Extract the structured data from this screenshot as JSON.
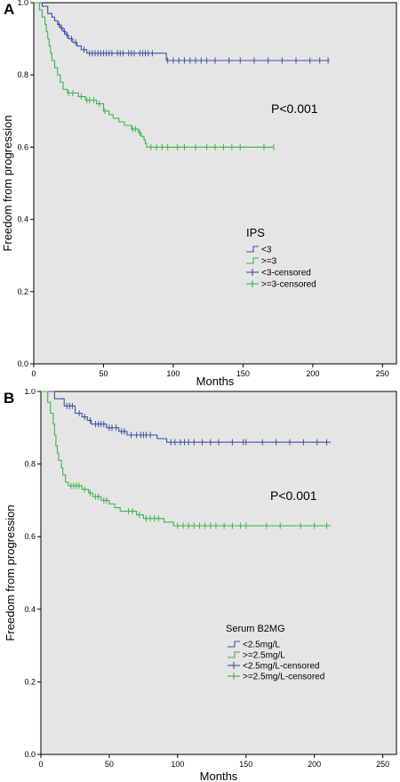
{
  "colors": {
    "blue": "#3a53a4",
    "green": "#3cb54a",
    "plot_bg": "#e5e5e5"
  },
  "chart_data": [
    {
      "type": "line",
      "panel_label": "A",
      "xlabel": "Months",
      "ylabel": "Freedom from progression",
      "xlim": [
        0,
        260
      ],
      "ylim": [
        0,
        1.0
      ],
      "xticks": [
        "0",
        "50",
        "100",
        "150",
        "200",
        "250"
      ],
      "yticks": [
        "0.0",
        "0.2",
        "0.4",
        "0.6",
        "0.8",
        "1.0"
      ],
      "p_value": "P<0.001",
      "legend_title": "IPS",
      "legend_items": [
        "<3",
        ">=3",
        "<3-censored",
        ">=3-censored"
      ],
      "series": [
        {
          "name": "<3",
          "color": "#3a53a4",
          "steps": [
            [
              0,
              1.0
            ],
            [
              6,
              0.99
            ],
            [
              10,
              0.97
            ],
            [
              13,
              0.96
            ],
            [
              15,
              0.95
            ],
            [
              17,
              0.94
            ],
            [
              19,
              0.93
            ],
            [
              21,
              0.92
            ],
            [
              23,
              0.91
            ],
            [
              25,
              0.9
            ],
            [
              28,
              0.89
            ],
            [
              31,
              0.88
            ],
            [
              34,
              0.87
            ],
            [
              38,
              0.86
            ],
            [
              95,
              0.84
            ],
            [
              212,
              0.84
            ]
          ],
          "censored": [
            [
              18,
              0.94
            ],
            [
              20,
              0.93
            ],
            [
              22,
              0.92
            ],
            [
              24,
              0.91
            ],
            [
              27,
              0.9
            ],
            [
              30,
              0.89
            ],
            [
              36,
              0.87
            ],
            [
              40,
              0.86
            ],
            [
              42,
              0.86
            ],
            [
              44,
              0.86
            ],
            [
              46,
              0.86
            ],
            [
              48,
              0.86
            ],
            [
              50,
              0.86
            ],
            [
              52,
              0.86
            ],
            [
              54,
              0.86
            ],
            [
              56,
              0.86
            ],
            [
              60,
              0.86
            ],
            [
              62,
              0.86
            ],
            [
              64,
              0.86
            ],
            [
              68,
              0.86
            ],
            [
              70,
              0.86
            ],
            [
              72,
              0.86
            ],
            [
              76,
              0.86
            ],
            [
              78,
              0.86
            ],
            [
              80,
              0.86
            ],
            [
              82,
              0.86
            ],
            [
              85,
              0.86
            ],
            [
              96,
              0.84
            ],
            [
              100,
              0.84
            ],
            [
              104,
              0.84
            ],
            [
              108,
              0.84
            ],
            [
              112,
              0.84
            ],
            [
              116,
              0.84
            ],
            [
              120,
              0.84
            ],
            [
              124,
              0.84
            ],
            [
              130,
              0.84
            ],
            [
              140,
              0.84
            ],
            [
              148,
              0.84
            ],
            [
              158,
              0.84
            ],
            [
              168,
              0.84
            ],
            [
              178,
              0.84
            ],
            [
              188,
              0.84
            ],
            [
              198,
              0.84
            ],
            [
              205,
              0.84
            ],
            [
              211,
              0.84
            ]
          ]
        },
        {
          "name": ">=3",
          "color": "#3cb54a",
          "steps": [
            [
              0,
              1.0
            ],
            [
              4,
              0.98
            ],
            [
              6,
              0.96
            ],
            [
              8,
              0.94
            ],
            [
              9,
              0.92
            ],
            [
              10,
              0.9
            ],
            [
              11,
              0.88
            ],
            [
              12,
              0.86
            ],
            [
              13,
              0.84
            ],
            [
              15,
              0.82
            ],
            [
              17,
              0.8
            ],
            [
              19,
              0.78
            ],
            [
              21,
              0.76
            ],
            [
              24,
              0.75
            ],
            [
              32,
              0.74
            ],
            [
              37,
              0.73
            ],
            [
              45,
              0.72
            ],
            [
              50,
              0.7
            ],
            [
              54,
              0.69
            ],
            [
              57,
              0.68
            ],
            [
              61,
              0.67
            ],
            [
              65,
              0.66
            ],
            [
              70,
              0.65
            ],
            [
              75,
              0.64
            ],
            [
              77,
              0.63
            ],
            [
              79,
              0.62
            ],
            [
              80,
              0.61
            ],
            [
              81,
              0.6
            ],
            [
              172,
              0.6
            ]
          ],
          "censored": [
            [
              25,
              0.75
            ],
            [
              28,
              0.75
            ],
            [
              34,
              0.74
            ],
            [
              38,
              0.73
            ],
            [
              40,
              0.73
            ],
            [
              43,
              0.73
            ],
            [
              47,
              0.72
            ],
            [
              51,
              0.7
            ],
            [
              71,
              0.65
            ],
            [
              73,
              0.65
            ],
            [
              76,
              0.64
            ],
            [
              84,
              0.6
            ],
            [
              88,
              0.6
            ],
            [
              92,
              0.6
            ],
            [
              96,
              0.6
            ],
            [
              103,
              0.6
            ],
            [
              108,
              0.6
            ],
            [
              116,
              0.6
            ],
            [
              124,
              0.6
            ],
            [
              130,
              0.6
            ],
            [
              136,
              0.6
            ],
            [
              142,
              0.6
            ],
            [
              148,
              0.6
            ],
            [
              165,
              0.6
            ],
            [
              172,
              0.6
            ]
          ]
        }
      ]
    },
    {
      "type": "line",
      "panel_label": "B",
      "xlabel": "Months",
      "ylabel": "Freedom from progression",
      "xlim": [
        0,
        260
      ],
      "ylim": [
        0,
        1.0
      ],
      "xticks": [
        "0",
        "50",
        "100",
        "150",
        "200",
        "250"
      ],
      "yticks": [
        "0.0",
        "0.2",
        "0.4",
        "0.6",
        "0.8",
        "1.0"
      ],
      "p_value": "P<0.001",
      "legend_title": "Serum B2MG",
      "legend_items": [
        "<2.5mg/L",
        ">=2.5mg/L",
        "<2.5mg/L-censored",
        ">=2.5mg/L-censored"
      ],
      "series": [
        {
          "name": "<2.5mg/L",
          "color": "#3a53a4",
          "steps": [
            [
              0,
              1.0
            ],
            [
              10,
              0.98
            ],
            [
              17,
              0.96
            ],
            [
              25,
              0.94
            ],
            [
              30,
              0.93
            ],
            [
              34,
              0.92
            ],
            [
              37,
              0.91
            ],
            [
              48,
              0.9
            ],
            [
              57,
              0.89
            ],
            [
              63,
              0.88
            ],
            [
              85,
              0.87
            ],
            [
              92,
              0.86
            ],
            [
              212,
              0.86
            ]
          ],
          "censored": [
            [
              19,
              0.96
            ],
            [
              21,
              0.96
            ],
            [
              23,
              0.96
            ],
            [
              28,
              0.94
            ],
            [
              32,
              0.93
            ],
            [
              36,
              0.92
            ],
            [
              40,
              0.91
            ],
            [
              42,
              0.91
            ],
            [
              44,
              0.91
            ],
            [
              46,
              0.91
            ],
            [
              50,
              0.9
            ],
            [
              52,
              0.9
            ],
            [
              55,
              0.9
            ],
            [
              59,
              0.89
            ],
            [
              61,
              0.89
            ],
            [
              66,
              0.88
            ],
            [
              70,
              0.88
            ],
            [
              73,
              0.88
            ],
            [
              75,
              0.88
            ],
            [
              77,
              0.88
            ],
            [
              80,
              0.88
            ],
            [
              95,
              0.86
            ],
            [
              98,
              0.86
            ],
            [
              102,
              0.86
            ],
            [
              105,
              0.86
            ],
            [
              108,
              0.86
            ],
            [
              112,
              0.86
            ],
            [
              118,
              0.86
            ],
            [
              124,
              0.86
            ],
            [
              130,
              0.86
            ],
            [
              140,
              0.86
            ],
            [
              148,
              0.86
            ],
            [
              150,
              0.86
            ],
            [
              162,
              0.86
            ],
            [
              172,
              0.86
            ],
            [
              182,
              0.86
            ],
            [
              192,
              0.86
            ],
            [
              202,
              0.86
            ],
            [
              209,
              0.86
            ]
          ]
        },
        {
          "name": ">=2.5mg/L",
          "color": "#3cb54a",
          "steps": [
            [
              0,
              1.0
            ],
            [
              5,
              0.97
            ],
            [
              7,
              0.94
            ],
            [
              9,
              0.91
            ],
            [
              10,
              0.88
            ],
            [
              11,
              0.85
            ],
            [
              12,
              0.83
            ],
            [
              13,
              0.81
            ],
            [
              15,
              0.79
            ],
            [
              16,
              0.77
            ],
            [
              18,
              0.75
            ],
            [
              20,
              0.74
            ],
            [
              30,
              0.73
            ],
            [
              35,
              0.72
            ],
            [
              38,
              0.71
            ],
            [
              44,
              0.7
            ],
            [
              50,
              0.69
            ],
            [
              54,
              0.68
            ],
            [
              58,
              0.67
            ],
            [
              70,
              0.66
            ],
            [
              75,
              0.65
            ],
            [
              90,
              0.64
            ],
            [
              97,
              0.63
            ],
            [
              212,
              0.63
            ]
          ],
          "censored": [
            [
              22,
              0.74
            ],
            [
              24,
              0.74
            ],
            [
              26,
              0.74
            ],
            [
              28,
              0.74
            ],
            [
              32,
              0.73
            ],
            [
              36,
              0.72
            ],
            [
              40,
              0.71
            ],
            [
              42,
              0.71
            ],
            [
              46,
              0.7
            ],
            [
              48,
              0.7
            ],
            [
              64,
              0.67
            ],
            [
              67,
              0.67
            ],
            [
              72,
              0.66
            ],
            [
              77,
              0.65
            ],
            [
              80,
              0.65
            ],
            [
              83,
              0.65
            ],
            [
              86,
              0.65
            ],
            [
              100,
              0.63
            ],
            [
              104,
              0.63
            ],
            [
              108,
              0.63
            ],
            [
              112,
              0.63
            ],
            [
              116,
              0.63
            ],
            [
              120,
              0.63
            ],
            [
              124,
              0.63
            ],
            [
              128,
              0.63
            ],
            [
              134,
              0.63
            ],
            [
              140,
              0.63
            ],
            [
              146,
              0.63
            ],
            [
              150,
              0.63
            ],
            [
              165,
              0.63
            ],
            [
              175,
              0.63
            ],
            [
              190,
              0.63
            ],
            [
              200,
              0.63
            ],
            [
              209,
              0.63
            ]
          ]
        }
      ]
    }
  ]
}
